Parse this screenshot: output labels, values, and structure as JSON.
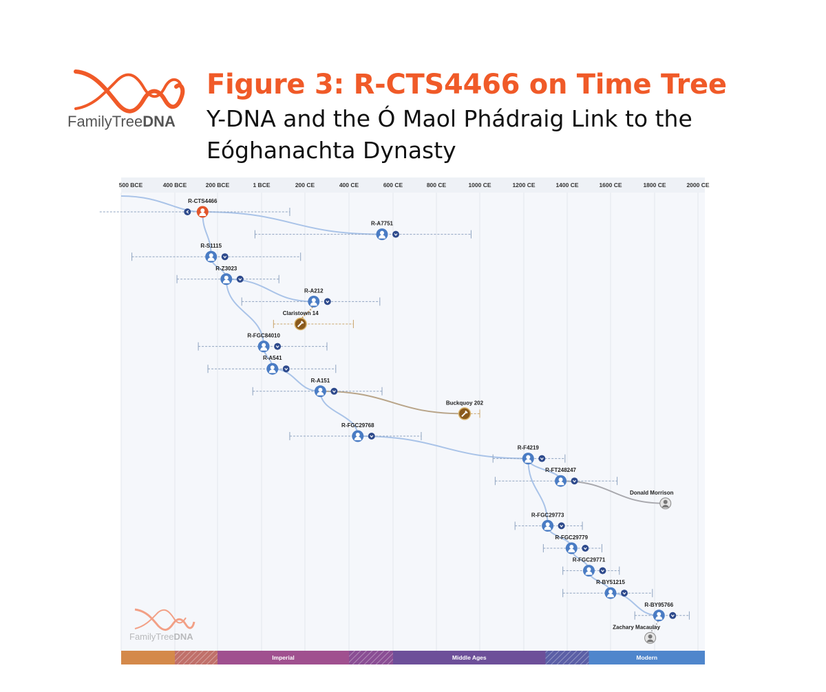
{
  "header": {
    "logo_text_family": "FamilyTree",
    "logo_text_dna": "DNA",
    "title": "Figure 3: R-CTS4466 on Time Tree",
    "subtitle": "Y-DNA and the Ó Maol Phádraig Link to the Eóghanachta Dynasty"
  },
  "colors": {
    "brand_orange": "#f05a28",
    "node_blue": "#4a7cc4",
    "node_navy": "#2e4a8c",
    "root_orange": "#e2552b",
    "ancient_brown": "#8a5a1c",
    "line_blue": "#a9c3e8"
  },
  "chart_data": {
    "type": "timeline-tree",
    "x_axis": {
      "ticks": [
        "500 BCE",
        "400 BCE",
        "200 BCE",
        "1 BCE",
        "200 CE",
        "400 CE",
        "600 CE",
        "800 CE",
        "1000 CE",
        "1200 CE",
        "1400 CE",
        "1600 CE",
        "1800 CE",
        "2000 CE"
      ],
      "tick_years": [
        -500,
        -400,
        -200,
        0,
        200,
        400,
        600,
        800,
        1000,
        1200,
        1400,
        1600,
        1800,
        2000
      ],
      "range": [
        -540,
        2080
      ]
    },
    "nodes": [
      {
        "id": "R-CTS4466",
        "label": "R-CTS4466",
        "year": -270,
        "ci": [
          -540,
          130
        ],
        "kind": "root",
        "parent": null
      },
      {
        "id": "R-A7751",
        "label": "R-A7751",
        "year": 550,
        "ci": [
          -30,
          960
        ],
        "kind": "haplo",
        "parent": "R-CTS4466"
      },
      {
        "id": "R-S1115",
        "label": "R-S1115",
        "year": -230,
        "ci": [
          -480,
          180
        ],
        "kind": "haplo",
        "parent": "R-CTS4466"
      },
      {
        "id": "R-Z3023",
        "label": "R-Z3023",
        "year": -160,
        "ci": [
          -390,
          80
        ],
        "kind": "haplo",
        "parent": "R-S1115"
      },
      {
        "id": "R-A212",
        "label": "R-A212",
        "year": 240,
        "ci": [
          -90,
          540
        ],
        "kind": "haplo",
        "parent": "R-Z3023"
      },
      {
        "id": "Claristown 14",
        "label": "Claristown 14",
        "year": 180,
        "ci": [
          55,
          420
        ],
        "kind": "ancient",
        "parent": "R-A212"
      },
      {
        "id": "R-FGC84010",
        "label": "R-FGC84010",
        "year": 10,
        "ci": [
          -290,
          300
        ],
        "kind": "haplo",
        "parent": "R-Z3023"
      },
      {
        "id": "R-A541",
        "label": "R-A541",
        "year": 50,
        "ci": [
          -245,
          340
        ],
        "kind": "haplo",
        "parent": "R-FGC84010"
      },
      {
        "id": "R-A151",
        "label": "R-A151",
        "year": 270,
        "ci": [
          -40,
          550
        ],
        "kind": "haplo",
        "parent": "R-A541"
      },
      {
        "id": "Buckquoy 202",
        "label": "Buckquoy 202",
        "year": 930,
        "ci": [
          910,
          1000
        ],
        "kind": "ancient",
        "parent": "R-A151"
      },
      {
        "id": "R-FGC29768",
        "label": "R-FGC29768",
        "year": 440,
        "ci": [
          130,
          730
        ],
        "kind": "haplo",
        "parent": "R-A151"
      },
      {
        "id": "R-F4219",
        "label": "R-F4219",
        "year": 1220,
        "ci": [
          1060,
          1390
        ],
        "kind": "haplo",
        "parent": "R-FGC29768"
      },
      {
        "id": "R-FT248247",
        "label": "R-FT248247",
        "year": 1370,
        "ci": [
          1070,
          1630
        ],
        "kind": "haplo",
        "parent": "R-F4219"
      },
      {
        "id": "Donald Morrison",
        "label": "Donald Morrison",
        "year": 1850,
        "ci": null,
        "kind": "person",
        "parent": "R-FT248247"
      },
      {
        "id": "R-FGC29773",
        "label": "R-FGC29773",
        "year": 1310,
        "ci": [
          1160,
          1470
        ],
        "kind": "haplo",
        "parent": "R-F4219"
      },
      {
        "id": "R-FGC29779",
        "label": "R-FGC29779",
        "year": 1420,
        "ci": [
          1290,
          1560
        ],
        "kind": "haplo",
        "parent": "R-FGC29773"
      },
      {
        "id": "R-FGC29771",
        "label": "R-FGC29771",
        "year": 1500,
        "ci": [
          1380,
          1640
        ],
        "kind": "haplo",
        "parent": "R-FGC29779"
      },
      {
        "id": "R-BY51215",
        "label": "R-BY51215",
        "year": 1600,
        "ci": [
          1380,
          1790
        ],
        "kind": "haplo",
        "parent": "R-FGC29771"
      },
      {
        "id": "R-BY95766",
        "label": "R-BY95766",
        "year": 1820,
        "ci": [
          1710,
          1960
        ],
        "kind": "haplo",
        "parent": "R-BY51215"
      },
      {
        "id": "Zachary Macaulay",
        "label": "Zachary Macaulay",
        "year": 1780,
        "ci": null,
        "kind": "person",
        "parent": "R-BY95766"
      }
    ],
    "eras": [
      {
        "label": "",
        "start": -540,
        "end": -400,
        "color": "#d4894a",
        "hatched": false
      },
      {
        "label": "",
        "start": -400,
        "end": -200,
        "color": "#c0706a",
        "hatched": true
      },
      {
        "label": "Imperial",
        "start": -200,
        "end": 400,
        "color": "#a0508f",
        "hatched": false
      },
      {
        "label": "",
        "start": 400,
        "end": 600,
        "color": "#8a4e94",
        "hatched": true
      },
      {
        "label": "Middle Ages",
        "start": 600,
        "end": 1300,
        "color": "#6d4f99",
        "hatched": false
      },
      {
        "label": "",
        "start": 1300,
        "end": 1500,
        "color": "#5b5fa6",
        "hatched": true
      },
      {
        "label": "Modern",
        "start": 1500,
        "end": 2080,
        "color": "#4f86cc",
        "hatched": false
      }
    ],
    "watermark": {
      "text_family": "FamilyTree",
      "text_dna": "DNA"
    }
  }
}
